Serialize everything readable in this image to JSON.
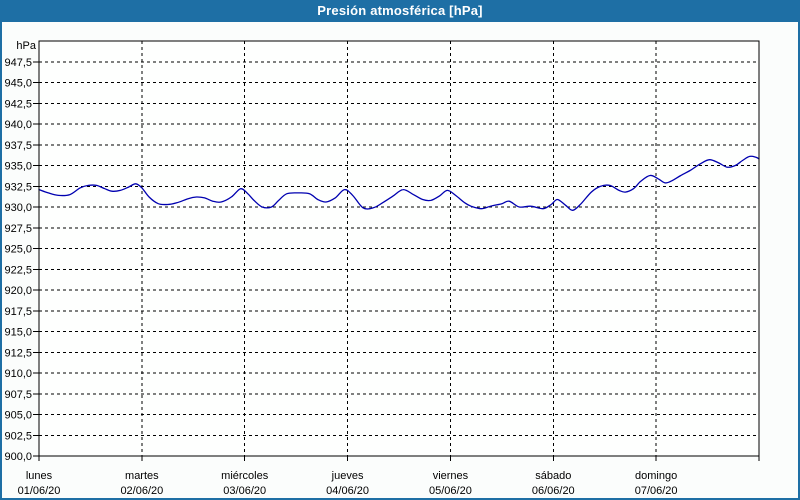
{
  "window": {
    "title": "Presión atmosférica [hPa]"
  },
  "colors": {
    "titlebar_bg": "#1e6fa5",
    "titlebar_text": "#ffffff",
    "frame_border": "#1e6fa5",
    "page_bg": "#fbfdfc",
    "plot_bg": "#fefffe",
    "grid": "#000000",
    "axis": "#000000",
    "tick_text": "#000000",
    "line": "#0000b0"
  },
  "chart_data": {
    "type": "line",
    "title": "Presión atmosférica [hPa]",
    "y_unit_label": "hPa",
    "ylabel": "hPa",
    "xlabel": "",
    "ylim": [
      900,
      950
    ],
    "ytick_step": 2.5,
    "grid_style": "dashed",
    "legend": "none",
    "x_range_days": [
      0,
      7
    ],
    "yticks": [
      {
        "v": 947.5,
        "label": "947,5"
      },
      {
        "v": 945.0,
        "label": "945,0"
      },
      {
        "v": 942.5,
        "label": "942,5"
      },
      {
        "v": 940.0,
        "label": "940,0"
      },
      {
        "v": 937.5,
        "label": "937,5"
      },
      {
        "v": 935.0,
        "label": "935,0"
      },
      {
        "v": 932.5,
        "label": "932,5"
      },
      {
        "v": 930.0,
        "label": "930,0"
      },
      {
        "v": 927.5,
        "label": "927,5"
      },
      {
        "v": 925.0,
        "label": "925,0"
      },
      {
        "v": 922.5,
        "label": "922,5"
      },
      {
        "v": 920.0,
        "label": "920,0"
      },
      {
        "v": 917.5,
        "label": "917,5"
      },
      {
        "v": 915.0,
        "label": "915,0"
      },
      {
        "v": 912.5,
        "label": "912,5"
      },
      {
        "v": 910.0,
        "label": "910,0"
      },
      {
        "v": 907.5,
        "label": "907,5"
      },
      {
        "v": 905.0,
        "label": "905,0"
      },
      {
        "v": 902.5,
        "label": "902,5"
      },
      {
        "v": 900.0,
        "label": "900,0"
      }
    ],
    "x_categories": [
      {
        "weekday": "lunes",
        "date": "01/06/20"
      },
      {
        "weekday": "martes",
        "date": "02/06/20"
      },
      {
        "weekday": "miércoles",
        "date": "03/06/20"
      },
      {
        "weekday": "jueves",
        "date": "04/06/20"
      },
      {
        "weekday": "viernes",
        "date": "05/06/20"
      },
      {
        "weekday": "sábado",
        "date": "06/06/20"
      },
      {
        "weekday": "domingo",
        "date": "07/06/20"
      }
    ],
    "series": [
      {
        "name": "Presión atmosférica",
        "color": "#0000b0",
        "points_day_hpa": [
          [
            0.0,
            932.1
          ],
          [
            0.09,
            931.7
          ],
          [
            0.19,
            931.4
          ],
          [
            0.3,
            931.5
          ],
          [
            0.4,
            932.3
          ],
          [
            0.48,
            932.6
          ],
          [
            0.56,
            932.6
          ],
          [
            0.64,
            932.2
          ],
          [
            0.71,
            931.9
          ],
          [
            0.79,
            932.0
          ],
          [
            0.87,
            932.4
          ],
          [
            0.94,
            932.8
          ],
          [
            1.0,
            932.3
          ],
          [
            1.07,
            931.2
          ],
          [
            1.16,
            930.4
          ],
          [
            1.25,
            930.3
          ],
          [
            1.34,
            930.5
          ],
          [
            1.45,
            931.0
          ],
          [
            1.53,
            931.2
          ],
          [
            1.61,
            931.1
          ],
          [
            1.69,
            930.7
          ],
          [
            1.77,
            930.6
          ],
          [
            1.87,
            931.2
          ],
          [
            1.96,
            932.2
          ],
          [
            2.03,
            931.6
          ],
          [
            2.09,
            930.8
          ],
          [
            2.17,
            930.0
          ],
          [
            2.26,
            930.0
          ],
          [
            2.33,
            930.8
          ],
          [
            2.41,
            931.6
          ],
          [
            2.52,
            931.7
          ],
          [
            2.63,
            931.6
          ],
          [
            2.71,
            930.9
          ],
          [
            2.79,
            930.6
          ],
          [
            2.88,
            931.1
          ],
          [
            2.97,
            932.1
          ],
          [
            3.05,
            931.4
          ],
          [
            3.15,
            929.9
          ],
          [
            3.25,
            929.9
          ],
          [
            3.34,
            930.5
          ],
          [
            3.44,
            931.3
          ],
          [
            3.54,
            932.1
          ],
          [
            3.64,
            931.5
          ],
          [
            3.73,
            930.9
          ],
          [
            3.81,
            930.8
          ],
          [
            3.89,
            931.3
          ],
          [
            3.97,
            932.0
          ],
          [
            4.05,
            931.4
          ],
          [
            4.14,
            930.5
          ],
          [
            4.2,
            930.1
          ],
          [
            4.3,
            929.8
          ],
          [
            4.39,
            930.1
          ],
          [
            4.5,
            930.4
          ],
          [
            4.57,
            930.7
          ],
          [
            4.67,
            930.0
          ],
          [
            4.78,
            930.1
          ],
          [
            4.9,
            929.8
          ],
          [
            4.98,
            930.3
          ],
          [
            5.04,
            930.9
          ],
          [
            5.12,
            930.2
          ],
          [
            5.19,
            929.6
          ],
          [
            5.27,
            930.4
          ],
          [
            5.37,
            931.8
          ],
          [
            5.46,
            932.5
          ],
          [
            5.55,
            932.6
          ],
          [
            5.64,
            932.0
          ],
          [
            5.7,
            931.8
          ],
          [
            5.78,
            932.2
          ],
          [
            5.85,
            933.1
          ],
          [
            5.94,
            933.8
          ],
          [
            6.02,
            933.4
          ],
          [
            6.09,
            932.9
          ],
          [
            6.16,
            933.2
          ],
          [
            6.24,
            933.8
          ],
          [
            6.33,
            934.4
          ],
          [
            6.43,
            935.2
          ],
          [
            6.52,
            935.7
          ],
          [
            6.61,
            935.3
          ],
          [
            6.69,
            934.8
          ],
          [
            6.77,
            935.0
          ],
          [
            6.84,
            935.6
          ],
          [
            6.91,
            936.1
          ],
          [
            6.97,
            936.0
          ],
          [
            7.0,
            935.8
          ]
        ]
      }
    ]
  }
}
